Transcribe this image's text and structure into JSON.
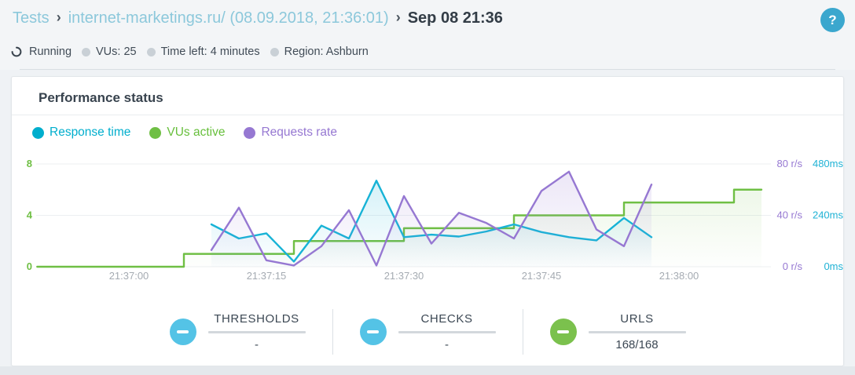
{
  "breadcrumb": {
    "separator": "›",
    "items": [
      {
        "label": "Tests"
      },
      {
        "label": "internet-marketings.ru/ (08.09.2018, 21:36:01)"
      },
      {
        "label": "Sep 08 21:36"
      }
    ]
  },
  "status_bar": {
    "state_label": "Running",
    "items": [
      "VUs: 25",
      "Time left: 4 minutes",
      "Region: Ashburn"
    ]
  },
  "help_button": {
    "label": "?"
  },
  "card": {
    "title": "Performance status",
    "legend": [
      {
        "label": "Response time",
        "color": "#00aecd"
      },
      {
        "label": "VUs active",
        "color": "#6fbf44"
      },
      {
        "label": "Requests rate",
        "color": "#9678d2"
      }
    ]
  },
  "chart_data": {
    "type": "line",
    "title": "Performance status",
    "grid": true,
    "legend_position": "top-left",
    "x_axis": {
      "unit": "time",
      "tick_labels": [
        "21:37:00",
        "21:37:15",
        "21:37:30",
        "21:37:45",
        "21:38:00"
      ],
      "tick_seconds": [
        0,
        15,
        30,
        45,
        60
      ],
      "visible_range_seconds": [
        -10,
        70
      ]
    },
    "y_axis_left": {
      "label": "VUs",
      "ticks": [
        0,
        4,
        8
      ],
      "max": 8,
      "color": "#6fbf44"
    },
    "y_axis_right_requests": {
      "tick_labels": [
        "0 r/s",
        "40 r/s",
        "80 r/s"
      ],
      "max": 80,
      "color": "#9678d2"
    },
    "y_axis_right_response": {
      "tick_labels": [
        "0ms",
        "240ms",
        "480ms"
      ],
      "max": 480,
      "color": "#1fb2d5"
    },
    "series": [
      {
        "name": "VUs active",
        "type": "step",
        "unit": "VUs",
        "color": "#6fbf44",
        "t_seconds": [
          -10,
          6,
          18,
          30,
          42,
          54,
          66
        ],
        "values": [
          0,
          1,
          2,
          3,
          4,
          5,
          6
        ],
        "end_second": 69
      },
      {
        "name": "Response time",
        "type": "line",
        "unit": "ms",
        "color": "#17b3d6",
        "t_seconds": [
          9,
          12,
          15,
          18,
          21,
          24,
          27,
          30,
          33,
          36,
          39,
          42,
          45,
          48,
          51,
          54,
          57
        ],
        "values": [
          198,
          132,
          156,
          24,
          192,
          132,
          402,
          138,
          150,
          141,
          165,
          198,
          162,
          138,
          123,
          228,
          138
        ]
      },
      {
        "name": "Requests rate",
        "type": "line",
        "unit": "r/s",
        "color": "#9678d2",
        "t_seconds": [
          9,
          12,
          15,
          18,
          21,
          24,
          27,
          30,
          33,
          36,
          39,
          42,
          45,
          48,
          51,
          54,
          57
        ],
        "values": [
          13,
          46,
          5,
          1,
          16,
          44,
          1,
          55,
          18,
          42,
          34,
          22,
          59,
          74,
          29,
          16,
          64
        ]
      }
    ]
  },
  "stats": [
    {
      "label": "THRESHOLDS",
      "value": "-",
      "color": "#54c3e6"
    },
    {
      "label": "CHECKS",
      "value": "-",
      "color": "#54c3e6"
    },
    {
      "label": "URLS",
      "value": "168/168",
      "color": "#7bc14d"
    }
  ]
}
